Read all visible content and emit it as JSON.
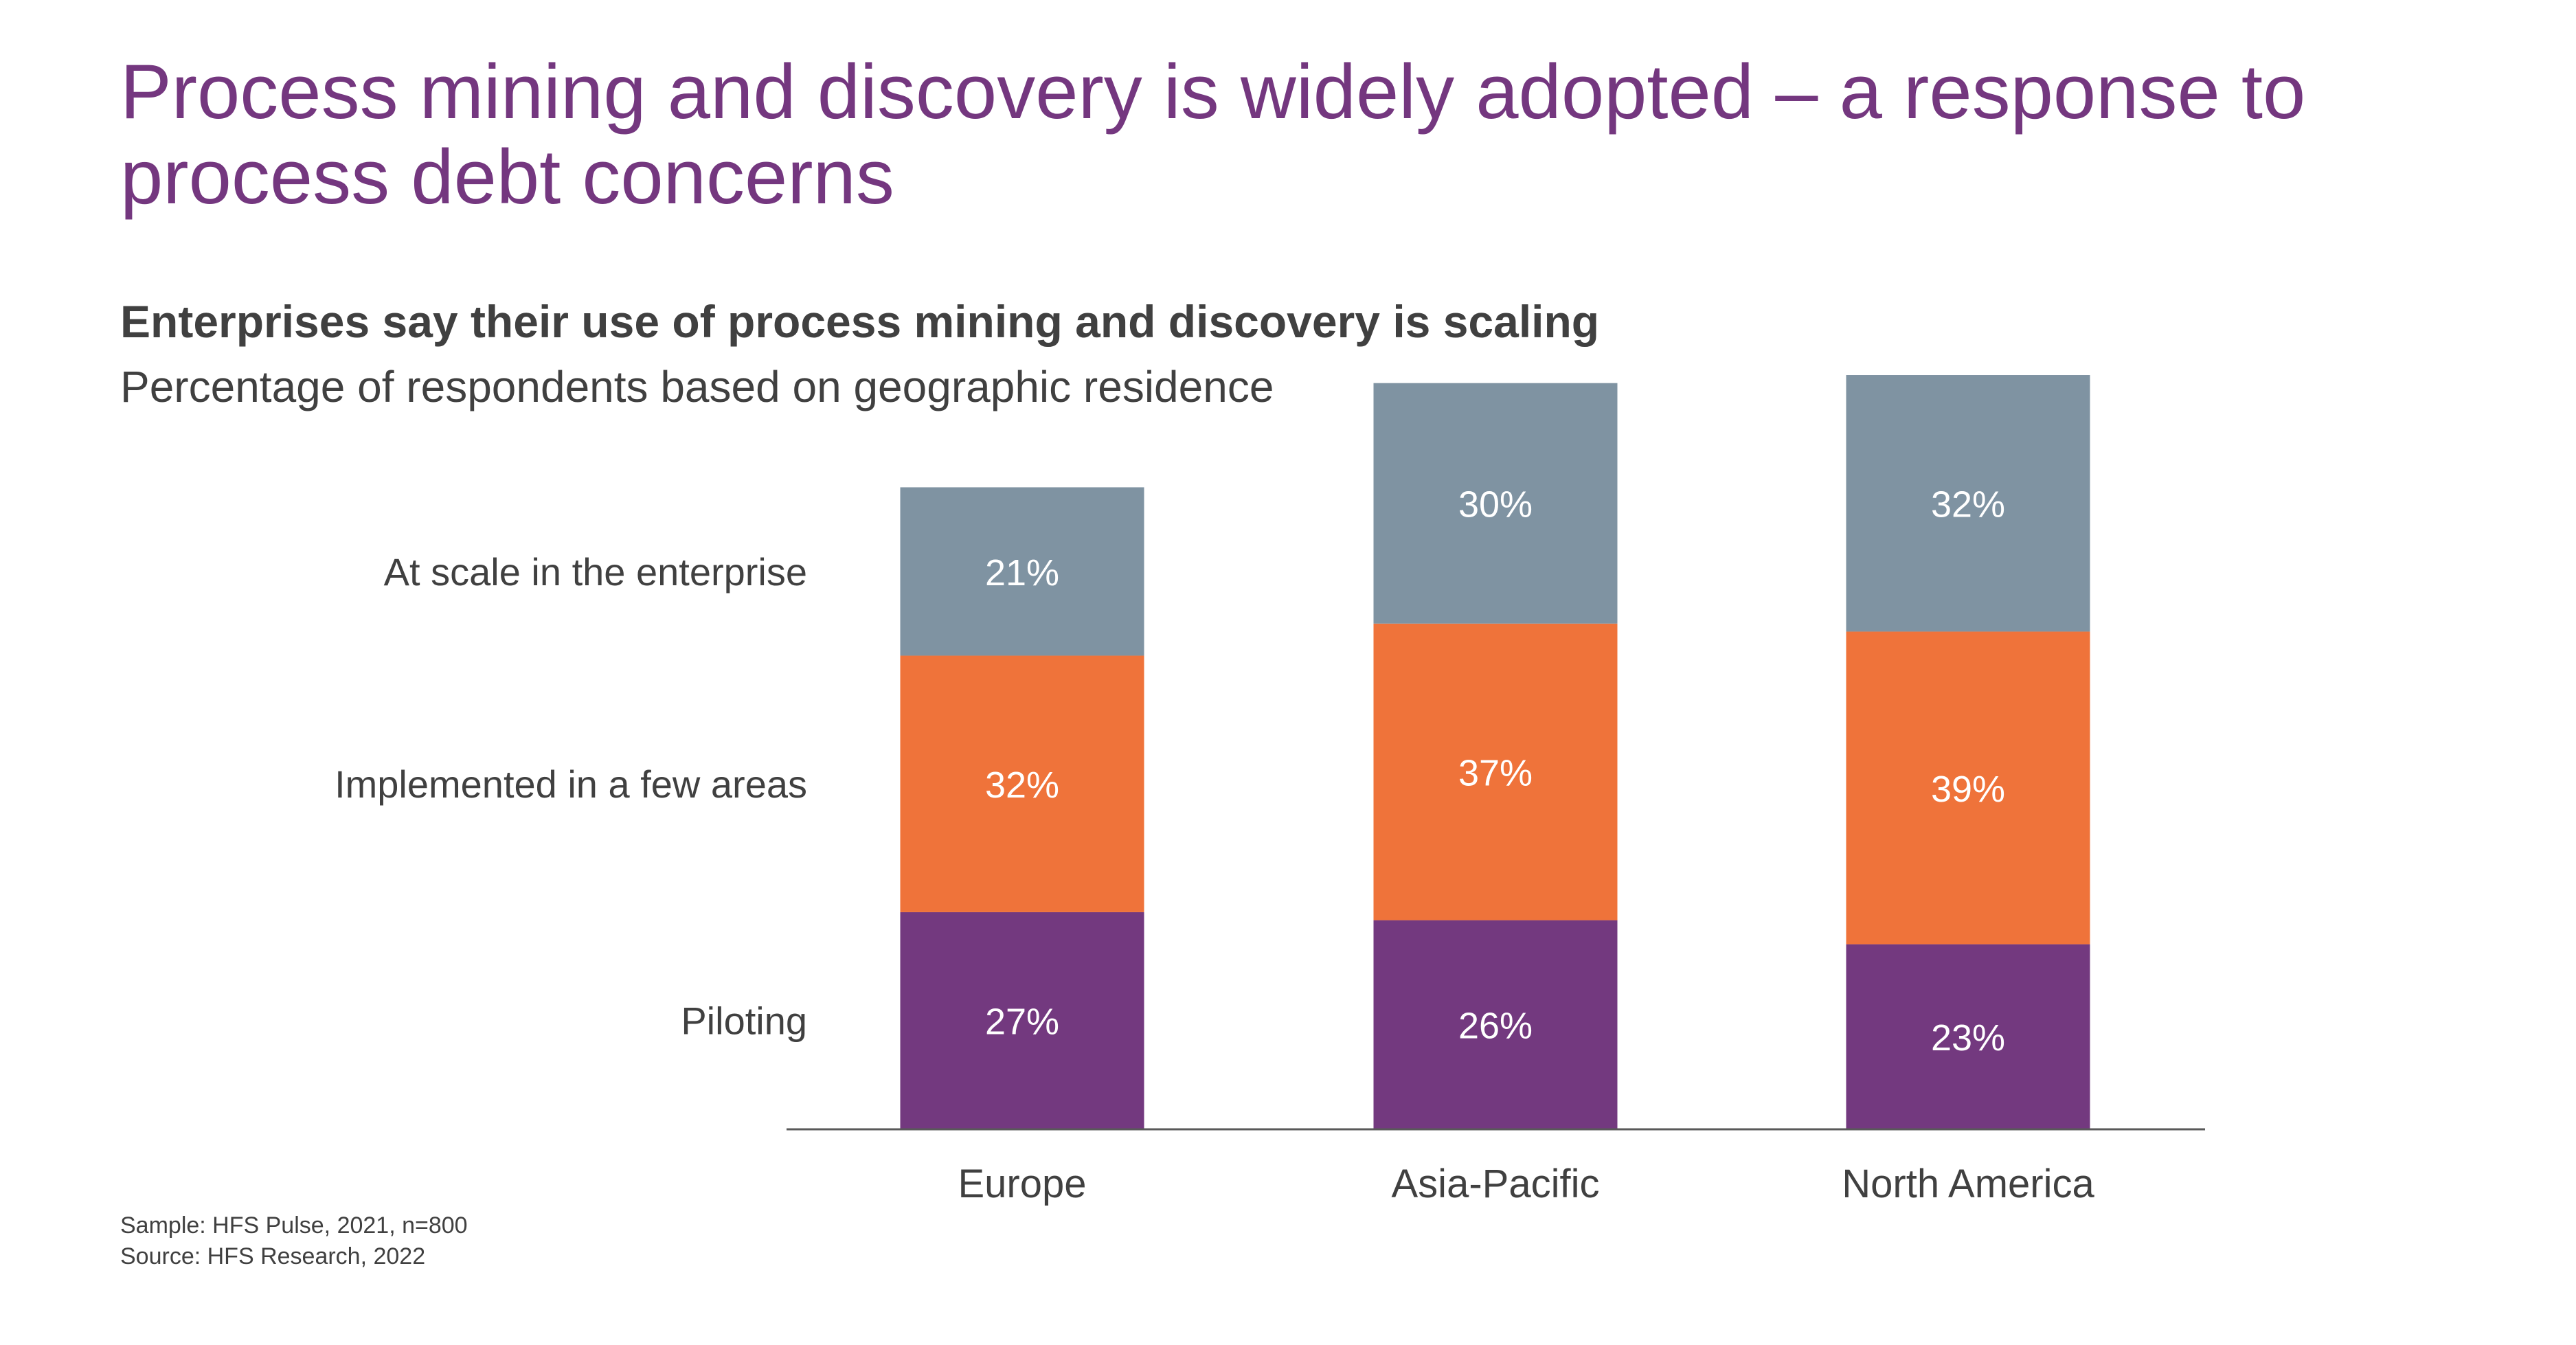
{
  "title": "Process mining and discovery is widely adopted – a response to process debt concerns",
  "subtitle": "Enterprises say their use of process mining and discovery is scaling",
  "description": "Percentage of respondents based on geographic residence",
  "footnotes": {
    "sample": "Sample: HFS Pulse, 2021, n=800",
    "source": "Source: HFS Research, 2022"
  },
  "colors": {
    "title": "#74377f",
    "text": "#404040",
    "at_scale": "#7f93a2",
    "implemented": "#ef733a",
    "piloting": "#73397f",
    "axis": "#595959"
  },
  "chart_data": {
    "type": "bar",
    "stacked": true,
    "categories": [
      "Europe",
      "Asia-Pacific",
      "North America"
    ],
    "series": [
      {
        "name": "Piloting",
        "values": [
          27,
          26,
          23
        ],
        "labels": [
          "27%",
          "26%",
          "23%"
        ],
        "color": "#73397f"
      },
      {
        "name": "Implemented in a few areas",
        "values": [
          32,
          37,
          39
        ],
        "labels": [
          "32%",
          "37%",
          "39%"
        ],
        "color": "#ef733a"
      },
      {
        "name": "At scale in the enterprise",
        "values": [
          21,
          30,
          32
        ],
        "labels": [
          "21%",
          "30%",
          "32%"
        ],
        "color": "#7f93a2"
      }
    ],
    "legend_position": "left",
    "unit": "%",
    "grid": false
  }
}
